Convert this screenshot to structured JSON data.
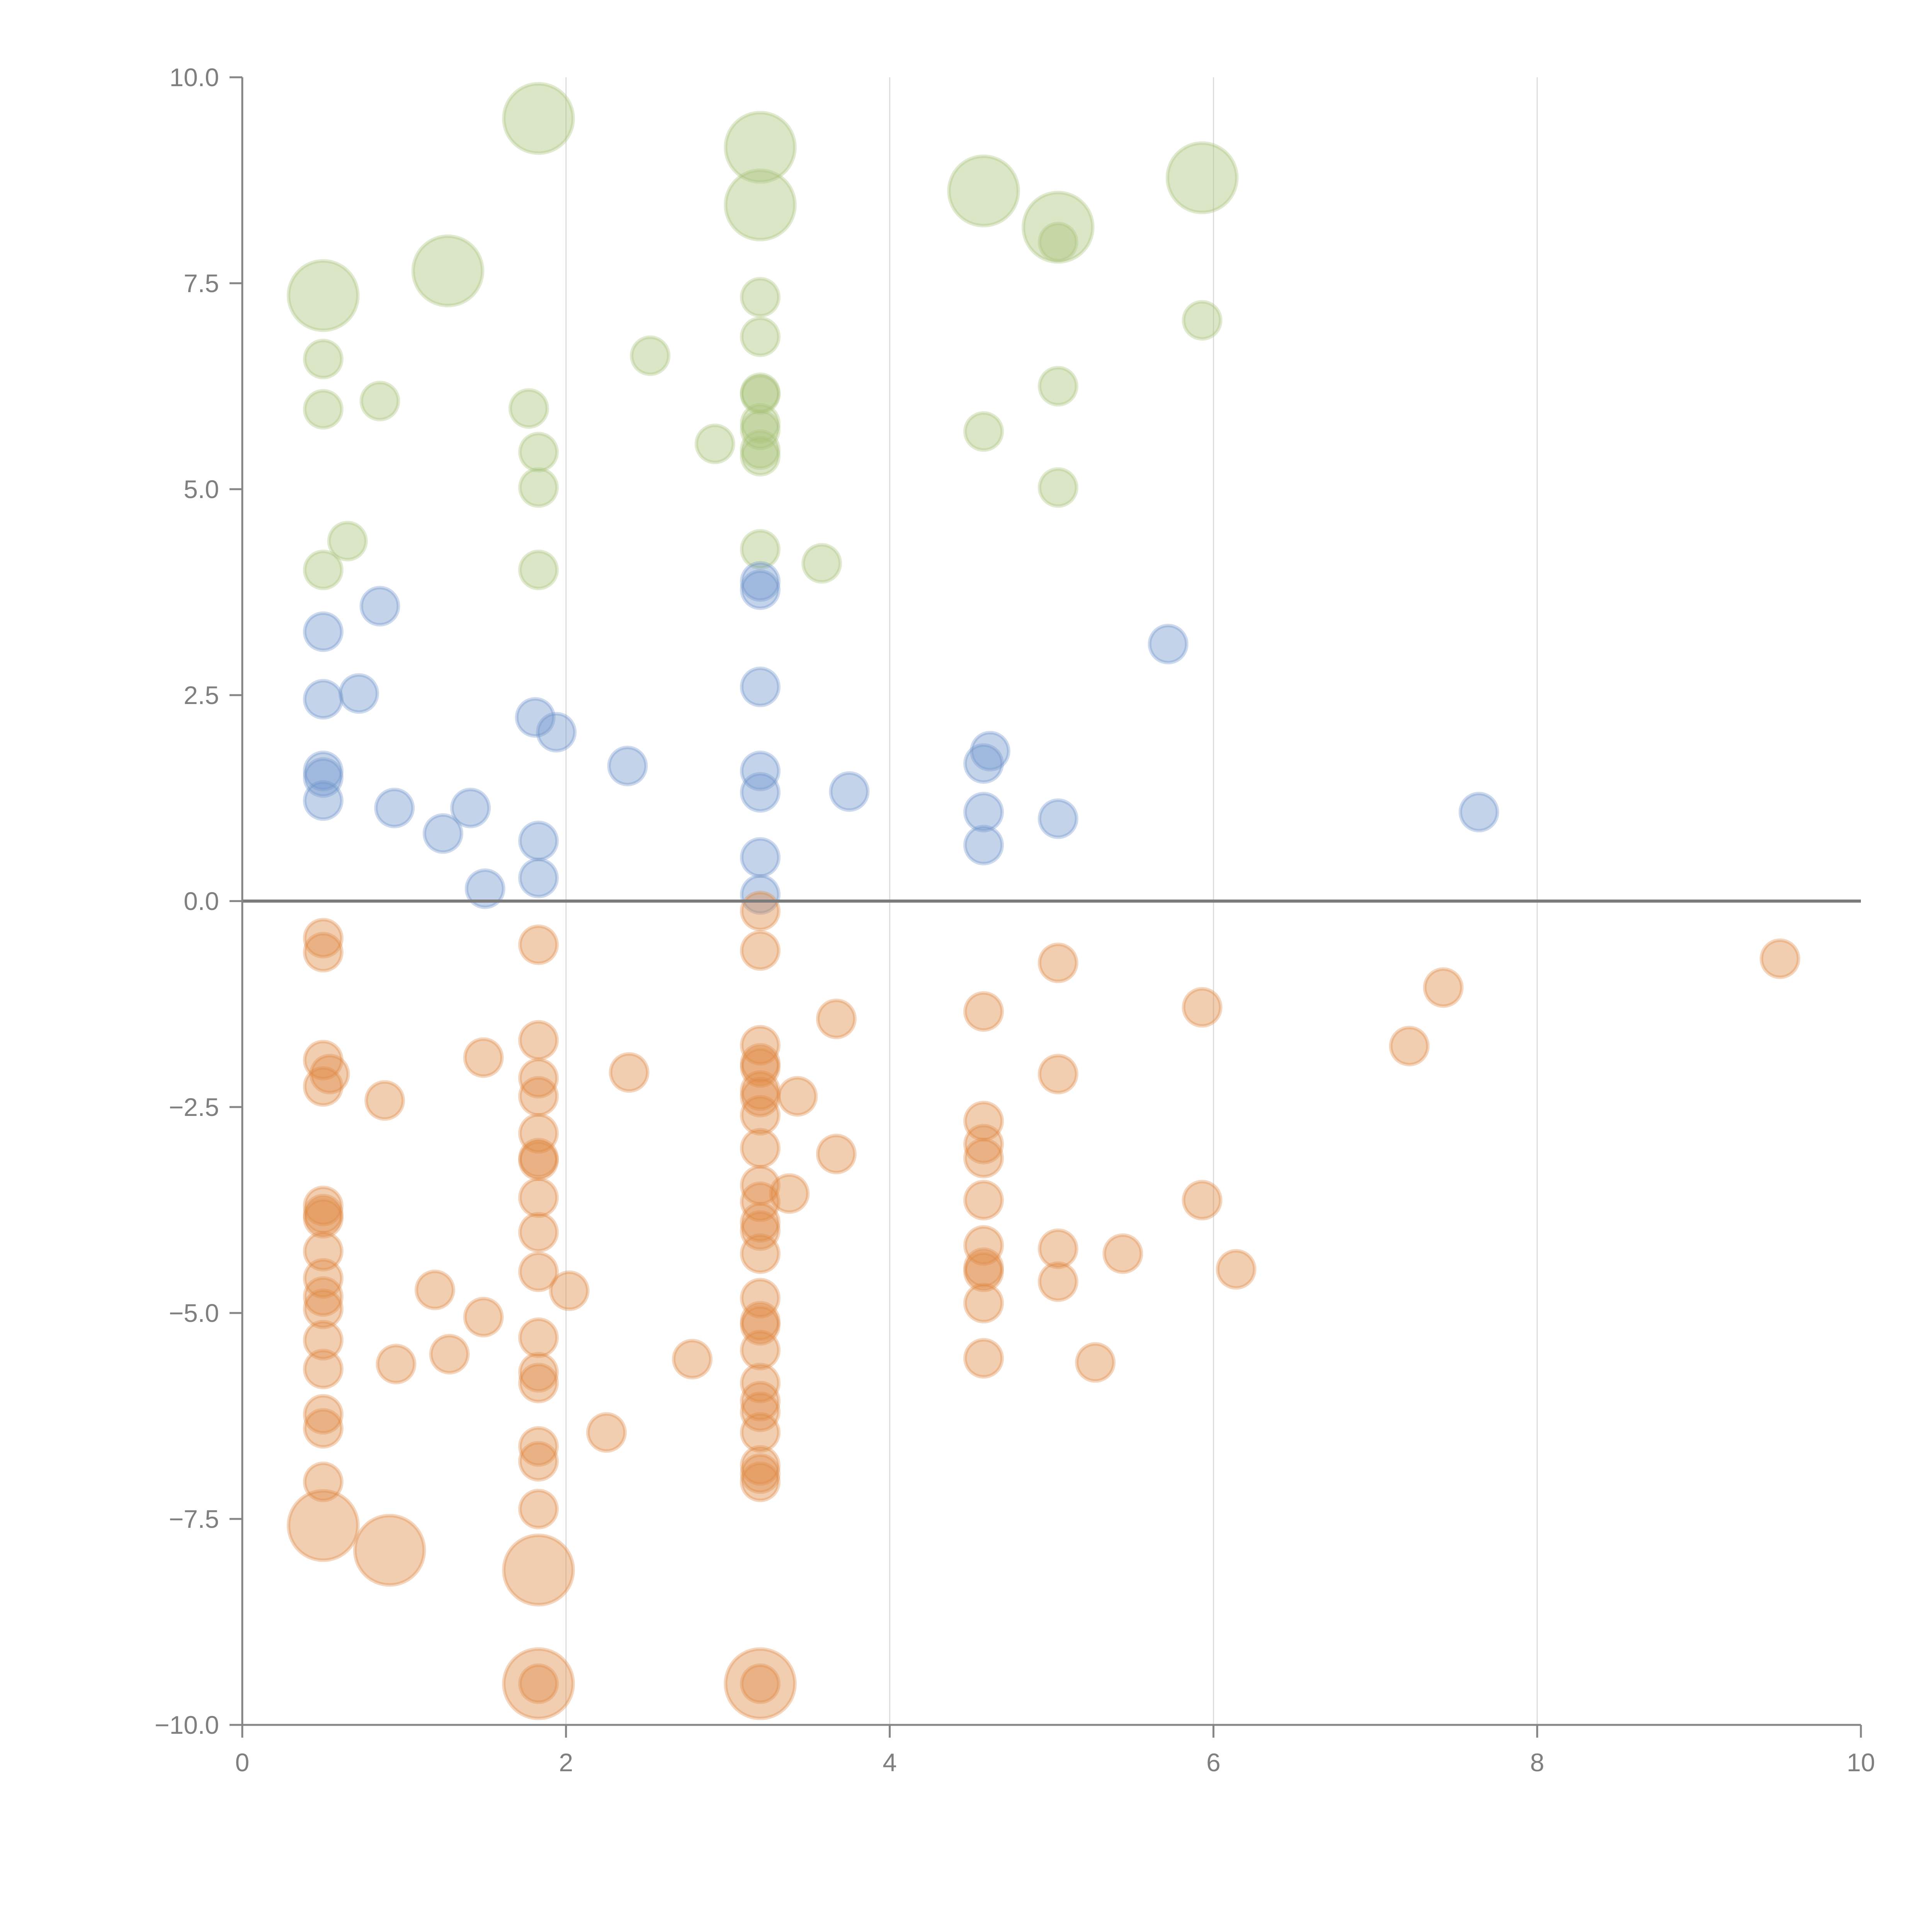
{
  "chart_data": {
    "type": "scatter",
    "title": "",
    "xlabel": "",
    "ylabel": "",
    "xlim": [
      0,
      10
    ],
    "ylim": [
      -10,
      10
    ],
    "x_ticks": [
      0,
      2,
      4,
      6,
      8,
      10
    ],
    "x_tick_labels": [
      "0",
      "2",
      "4",
      "6",
      "8",
      "10"
    ],
    "y_ticks": [
      10,
      7.5,
      5,
      2.5,
      0,
      -2.5,
      -5,
      -7.5,
      -10
    ],
    "y_tick_labels": [
      "10.0",
      "7.5",
      "5.0",
      "2.5",
      "0.0",
      "−2.5",
      "−5.0",
      "−7.5",
      "−10.0"
    ],
    "grid": "vertical",
    "reference_line_y": 0,
    "size_note": "third value in each point is relative marker size",
    "series": [
      {
        "name": "green",
        "color": "#a9c47a",
        "points": [
          [
            0.5,
            7.35,
            3.5
          ],
          [
            1.27,
            7.65,
            3.5
          ],
          [
            1.83,
            9.5,
            3.5
          ],
          [
            3.2,
            9.15,
            3.5
          ],
          [
            3.2,
            8.45,
            3.5
          ],
          [
            4.58,
            8.62,
            3.5
          ],
          [
            5.04,
            8.18,
            3.5
          ],
          [
            5.93,
            8.78,
            3.5
          ],
          [
            0.5,
            6.58,
            1
          ],
          [
            0.5,
            5.97,
            1
          ],
          [
            0.85,
            6.07,
            1
          ],
          [
            1.77,
            5.98,
            1
          ],
          [
            1.83,
            5.45,
            1
          ],
          [
            1.83,
            5.02,
            1
          ],
          [
            1.83,
            4.02,
            1
          ],
          [
            0.5,
            4.02,
            1
          ],
          [
            0.65,
            4.37,
            1
          ],
          [
            2.52,
            6.62,
            1
          ],
          [
            2.92,
            5.55,
            1
          ],
          [
            3.2,
            7.33,
            1
          ],
          [
            3.2,
            6.85,
            1
          ],
          [
            3.2,
            6.17,
            1
          ],
          [
            3.2,
            6.15,
            1
          ],
          [
            3.2,
            5.8,
            1
          ],
          [
            3.2,
            5.72,
            1
          ],
          [
            3.2,
            5.48,
            1
          ],
          [
            3.2,
            5.4,
            1
          ],
          [
            3.2,
            4.27,
            1
          ],
          [
            3.58,
            4.1,
            1
          ],
          [
            4.58,
            5.7,
            1
          ],
          [
            5.04,
            6.25,
            1
          ],
          [
            5.04,
            5.02,
            1
          ],
          [
            5.04,
            8.0,
            1
          ],
          [
            5.93,
            7.05,
            1
          ]
        ]
      },
      {
        "name": "blue",
        "color": "#6f95cc",
        "points": [
          [
            0.5,
            3.27,
            1
          ],
          [
            0.85,
            3.58,
            1
          ],
          [
            0.5,
            2.45,
            1
          ],
          [
            0.72,
            2.52,
            1
          ],
          [
            0.5,
            1.58,
            1
          ],
          [
            0.5,
            1.5,
            1
          ],
          [
            0.5,
            1.22,
            1
          ],
          [
            0.94,
            1.13,
            1
          ],
          [
            1.24,
            0.82,
            1
          ],
          [
            1.41,
            1.13,
            1
          ],
          [
            1.5,
            0.15,
            1
          ],
          [
            1.81,
            2.23,
            1
          ],
          [
            1.94,
            2.05,
            1
          ],
          [
            1.83,
            0.73,
            1
          ],
          [
            1.83,
            0.28,
            1
          ],
          [
            2.38,
            1.64,
            1
          ],
          [
            3.2,
            3.88,
            1
          ],
          [
            3.2,
            3.78,
            1
          ],
          [
            3.2,
            2.6,
            1
          ],
          [
            3.2,
            1.58,
            1
          ],
          [
            3.2,
            1.32,
            1
          ],
          [
            3.2,
            0.53,
            1
          ],
          [
            3.2,
            0.08,
            1
          ],
          [
            3.75,
            1.33,
            1
          ],
          [
            4.62,
            1.82,
            1
          ],
          [
            4.58,
            1.67,
            1
          ],
          [
            4.58,
            1.08,
            1
          ],
          [
            4.58,
            0.68,
            1
          ],
          [
            5.04,
            1.0,
            1
          ],
          [
            5.72,
            3.12,
            1
          ],
          [
            7.64,
            1.08,
            1
          ]
        ]
      },
      {
        "name": "orange",
        "color": "#e08a45",
        "points": [
          [
            0.5,
            -7.58,
            3.5
          ],
          [
            0.91,
            -7.88,
            3.5
          ],
          [
            1.83,
            -8.12,
            3.5
          ],
          [
            1.83,
            -9.5,
            3.5
          ],
          [
            3.2,
            -9.5,
            3.5
          ],
          [
            0.5,
            -0.45,
            1
          ],
          [
            0.5,
            -0.62,
            1
          ],
          [
            0.5,
            -1.93,
            1
          ],
          [
            0.5,
            -2.25,
            1
          ],
          [
            0.5,
            -3.7,
            1
          ],
          [
            0.5,
            -3.8,
            1
          ],
          [
            0.5,
            -3.85,
            1
          ],
          [
            0.5,
            -4.25,
            1
          ],
          [
            0.5,
            -4.58,
            1
          ],
          [
            0.5,
            -4.8,
            1
          ],
          [
            0.5,
            -4.95,
            1
          ],
          [
            0.5,
            -5.33,
            1
          ],
          [
            0.5,
            -5.68,
            1
          ],
          [
            0.5,
            -6.23,
            1
          ],
          [
            0.5,
            -6.4,
            1
          ],
          [
            0.5,
            -7.05,
            1
          ],
          [
            0.54,
            -2.1,
            1
          ],
          [
            0.88,
            -2.42,
            1
          ],
          [
            1.19,
            -4.72,
            1
          ],
          [
            0.95,
            -5.62,
            1
          ],
          [
            1.28,
            -5.5,
            1
          ],
          [
            1.49,
            -5.05,
            1
          ],
          [
            1.49,
            -1.9,
            1
          ],
          [
            1.83,
            -0.53,
            1
          ],
          [
            1.83,
            -1.69,
            1
          ],
          [
            1.83,
            -2.15,
            1
          ],
          [
            1.83,
            -2.37,
            1
          ],
          [
            1.83,
            -2.82,
            1
          ],
          [
            1.83,
            -3.12,
            1
          ],
          [
            1.83,
            -3.15,
            1
          ],
          [
            1.83,
            -3.6,
            1
          ],
          [
            1.83,
            -4.02,
            1
          ],
          [
            1.83,
            -4.5,
            1
          ],
          [
            1.83,
            -5.3,
            1
          ],
          [
            1.83,
            -5.72,
            1
          ],
          [
            1.83,
            -5.85,
            1
          ],
          [
            1.83,
            -6.62,
            1
          ],
          [
            1.83,
            -6.8,
            1
          ],
          [
            1.83,
            -7.38,
            1
          ],
          [
            1.83,
            -9.5,
            1
          ],
          [
            2.02,
            -4.73,
            1
          ],
          [
            2.25,
            -6.45,
            1
          ],
          [
            2.39,
            -2.08,
            1
          ],
          [
            2.78,
            -5.56,
            1
          ],
          [
            3.2,
            -0.12,
            1
          ],
          [
            3.2,
            -0.6,
            1
          ],
          [
            3.2,
            -1.75,
            1
          ],
          [
            3.2,
            -1.97,
            1
          ],
          [
            3.2,
            -2.02,
            1
          ],
          [
            3.2,
            -2.3,
            1
          ],
          [
            3.2,
            -2.38,
            1
          ],
          [
            3.2,
            -2.6,
            1
          ],
          [
            3.2,
            -3.0,
            1
          ],
          [
            3.2,
            -3.45,
            1
          ],
          [
            3.2,
            -3.65,
            1
          ],
          [
            3.2,
            -3.9,
            1
          ],
          [
            3.2,
            -4.0,
            1
          ],
          [
            3.2,
            -4.28,
            1
          ],
          [
            3.2,
            -4.82,
            1
          ],
          [
            3.2,
            -5.1,
            1
          ],
          [
            3.2,
            -5.15,
            1
          ],
          [
            3.2,
            -5.45,
            1
          ],
          [
            3.2,
            -5.85,
            1
          ],
          [
            3.2,
            -6.07,
            1
          ],
          [
            3.2,
            -6.2,
            1
          ],
          [
            3.2,
            -6.45,
            1
          ],
          [
            3.2,
            -6.85,
            1
          ],
          [
            3.2,
            -6.95,
            1
          ],
          [
            3.2,
            -7.05,
            1
          ],
          [
            3.2,
            -9.5,
            1
          ],
          [
            3.43,
            -2.37,
            1
          ],
          [
            3.38,
            -3.55,
            1
          ],
          [
            3.67,
            -1.43,
            1
          ],
          [
            3.67,
            -3.07,
            1
          ],
          [
            4.58,
            -1.34,
            1
          ],
          [
            4.58,
            -2.67,
            1
          ],
          [
            4.58,
            -2.95,
            1
          ],
          [
            4.58,
            -3.12,
            1
          ],
          [
            4.58,
            -3.63,
            1
          ],
          [
            4.58,
            -4.18,
            1
          ],
          [
            4.58,
            -4.45,
            1
          ],
          [
            4.58,
            -4.5,
            1
          ],
          [
            4.58,
            -4.88,
            1
          ],
          [
            4.58,
            -5.55,
            1
          ],
          [
            5.04,
            -0.75,
            1
          ],
          [
            5.04,
            -2.1,
            1
          ],
          [
            5.04,
            -4.22,
            1
          ],
          [
            5.04,
            -4.62,
            1
          ],
          [
            5.27,
            -5.6,
            1
          ],
          [
            5.44,
            -4.28,
            1
          ],
          [
            5.93,
            -1.29,
            1
          ],
          [
            5.93,
            -3.63,
            1
          ],
          [
            6.14,
            -4.47,
            1
          ],
          [
            7.21,
            -1.76,
            1
          ],
          [
            7.42,
            -1.05,
            1
          ],
          [
            9.5,
            -0.7,
            1
          ]
        ]
      }
    ]
  }
}
